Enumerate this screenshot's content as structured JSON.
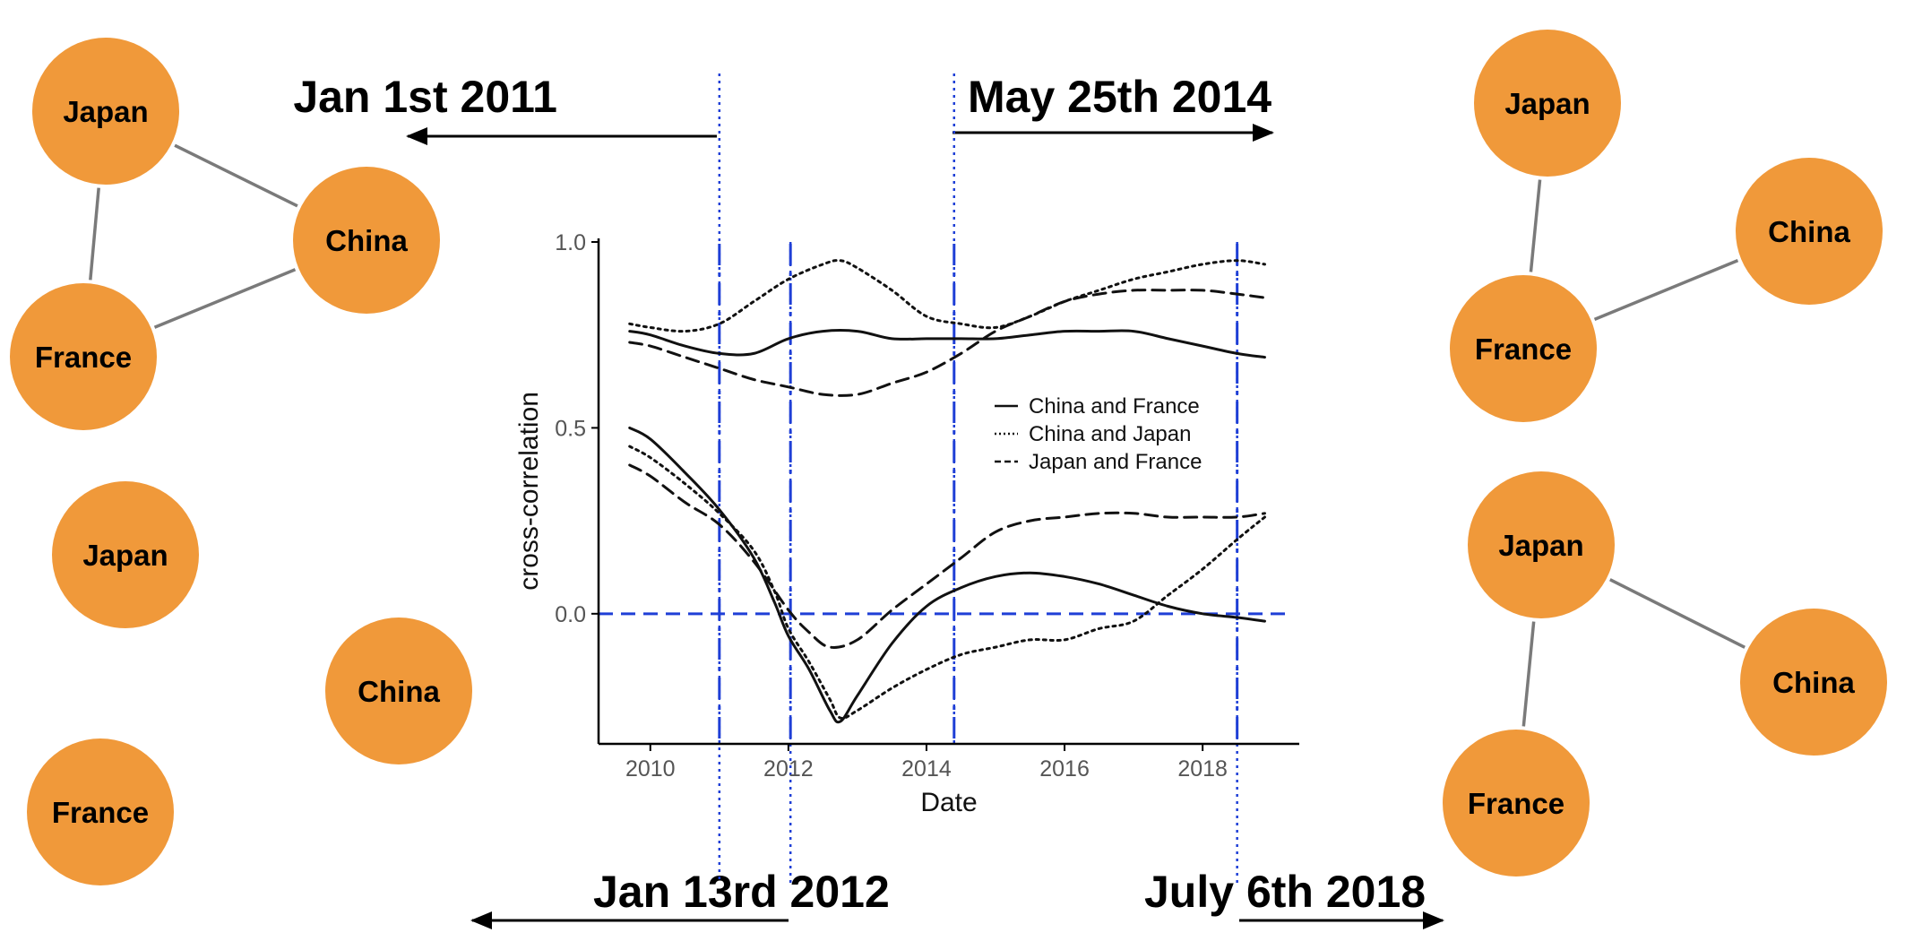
{
  "colors": {
    "node_fill": "#F0993A",
    "edge": "#7a7a7a",
    "reference_line": "#1f3fd6",
    "series": "#111111"
  },
  "networks": [
    {
      "id": "net-2011",
      "nodes": [
        {
          "label": "Japan"
        },
        {
          "label": "China"
        },
        {
          "label": "France"
        }
      ],
      "edges": [
        [
          "Japan",
          "China"
        ],
        [
          "Japan",
          "France"
        ],
        [
          "France",
          "China"
        ]
      ]
    },
    {
      "id": "net-2012",
      "nodes": [
        {
          "label": "Japan"
        },
        {
          "label": "China"
        },
        {
          "label": "France"
        }
      ],
      "edges": []
    },
    {
      "id": "net-2014",
      "nodes": [
        {
          "label": "Japan"
        },
        {
          "label": "China"
        },
        {
          "label": "France"
        }
      ],
      "edges": [
        [
          "Japan",
          "France"
        ],
        [
          "France",
          "China"
        ]
      ]
    },
    {
      "id": "net-2018",
      "nodes": [
        {
          "label": "Japan"
        },
        {
          "label": "China"
        },
        {
          "label": "France"
        }
      ],
      "edges": [
        [
          "Japan",
          "China"
        ],
        [
          "Japan",
          "France"
        ]
      ]
    }
  ],
  "annotations": [
    {
      "key": "d2011",
      "label": "Jan 1st 2011",
      "x": 2011.0,
      "direction": "left"
    },
    {
      "key": "d2014",
      "label": "May 25th 2014",
      "x": 2014.4,
      "direction": "right"
    },
    {
      "key": "d2012",
      "label": "Jan 13rd 2012",
      "x": 2012.03,
      "direction": "left"
    },
    {
      "key": "d2018",
      "label": "July 6th 2018",
      "x": 2018.5,
      "direction": "right"
    }
  ],
  "chart_data": {
    "type": "line",
    "xlabel": "Date",
    "ylabel": "cross-correlation",
    "xlim": [
      2009.25,
      2019.4
    ],
    "ylim": [
      -0.35,
      1.0
    ],
    "xticks": [
      2010,
      2012,
      2014,
      2016,
      2018
    ],
    "yticks": [
      {
        "value": 0.0,
        "label": "0.0"
      },
      {
        "value": 0.5,
        "label": "0.5"
      },
      {
        "value": 1.0,
        "label": "1.0"
      }
    ],
    "grid": false,
    "legend_position": "right",
    "hline": 0.0,
    "vlines": [
      2011.0,
      2012.03,
      2014.4,
      2018.5
    ],
    "series": [
      {
        "name": "China and France",
        "style": "solid",
        "group": "upper",
        "x": [
          2009.7,
          2010,
          2010.5,
          2011,
          2011.5,
          2012,
          2012.5,
          2013,
          2013.5,
          2014,
          2014.5,
          2015,
          2015.5,
          2016,
          2016.5,
          2017,
          2017.5,
          2018,
          2018.5,
          2018.9
        ],
        "y": [
          0.76,
          0.75,
          0.72,
          0.7,
          0.7,
          0.74,
          0.76,
          0.76,
          0.74,
          0.74,
          0.74,
          0.74,
          0.75,
          0.76,
          0.76,
          0.76,
          0.74,
          0.72,
          0.7,
          0.69
        ]
      },
      {
        "name": "China and Japan",
        "style": "dotted",
        "group": "upper",
        "x": [
          2009.7,
          2010,
          2010.5,
          2011,
          2011.5,
          2012,
          2012.5,
          2012.75,
          2013,
          2013.5,
          2014,
          2014.5,
          2015,
          2015.5,
          2016,
          2016.5,
          2017,
          2017.5,
          2018,
          2018.5,
          2018.9
        ],
        "y": [
          0.78,
          0.77,
          0.76,
          0.78,
          0.84,
          0.9,
          0.94,
          0.95,
          0.93,
          0.87,
          0.8,
          0.78,
          0.77,
          0.8,
          0.84,
          0.87,
          0.9,
          0.92,
          0.94,
          0.95,
          0.94
        ]
      },
      {
        "name": "Japan and France",
        "style": "dashed",
        "group": "upper",
        "x": [
          2009.7,
          2010,
          2010.5,
          2011,
          2011.5,
          2012,
          2012.5,
          2013,
          2013.5,
          2014,
          2014.5,
          2015,
          2015.5,
          2016,
          2016.5,
          2017,
          2017.5,
          2018,
          2018.5,
          2018.9
        ],
        "y": [
          0.73,
          0.72,
          0.69,
          0.66,
          0.63,
          0.61,
          0.59,
          0.59,
          0.62,
          0.65,
          0.7,
          0.76,
          0.8,
          0.84,
          0.86,
          0.87,
          0.87,
          0.87,
          0.86,
          0.85
        ]
      },
      {
        "name": "China and France",
        "style": "solid",
        "group": "lower",
        "x": [
          2009.7,
          2010,
          2010.5,
          2011,
          2011.5,
          2011.8,
          2012,
          2012.3,
          2012.6,
          2012.75,
          2013,
          2013.5,
          2014,
          2014.5,
          2015,
          2015.5,
          2016,
          2016.5,
          2017,
          2017.5,
          2018,
          2018.5,
          2018.9
        ],
        "y": [
          0.5,
          0.47,
          0.38,
          0.28,
          0.15,
          0.03,
          -0.06,
          -0.15,
          -0.26,
          -0.29,
          -0.22,
          -0.08,
          0.02,
          0.07,
          0.1,
          0.11,
          0.1,
          0.08,
          0.05,
          0.02,
          0.0,
          -0.01,
          -0.02
        ]
      },
      {
        "name": "China and Japan",
        "style": "dotted",
        "group": "lower",
        "x": [
          2009.7,
          2010,
          2010.5,
          2011,
          2011.5,
          2011.8,
          2012,
          2012.3,
          2012.6,
          2012.75,
          2013,
          2013.5,
          2014,
          2014.5,
          2015,
          2015.5,
          2016,
          2016.5,
          2017,
          2017.5,
          2018,
          2018.5,
          2018.9
        ],
        "y": [
          0.45,
          0.42,
          0.35,
          0.27,
          0.17,
          0.06,
          -0.04,
          -0.13,
          -0.23,
          -0.28,
          -0.26,
          -0.2,
          -0.15,
          -0.11,
          -0.09,
          -0.07,
          -0.07,
          -0.04,
          -0.02,
          0.05,
          0.12,
          0.2,
          0.26
        ]
      },
      {
        "name": "Japan and France",
        "style": "dashed",
        "group": "lower",
        "x": [
          2009.7,
          2010,
          2010.5,
          2011,
          2011.5,
          2012,
          2012.3,
          2012.6,
          2013,
          2013.5,
          2014,
          2014.5,
          2015,
          2015.5,
          2016,
          2016.5,
          2017,
          2017.5,
          2018,
          2018.5,
          2018.9
        ],
        "y": [
          0.4,
          0.37,
          0.3,
          0.24,
          0.14,
          0.01,
          -0.05,
          -0.09,
          -0.07,
          0.01,
          0.08,
          0.15,
          0.22,
          0.25,
          0.26,
          0.27,
          0.27,
          0.26,
          0.26,
          0.26,
          0.27
        ]
      }
    ],
    "legend": [
      {
        "name": "China and France",
        "style": "solid"
      },
      {
        "name": "China and Japan",
        "style": "dotted"
      },
      {
        "name": "Japan and France",
        "style": "dashed"
      }
    ]
  }
}
